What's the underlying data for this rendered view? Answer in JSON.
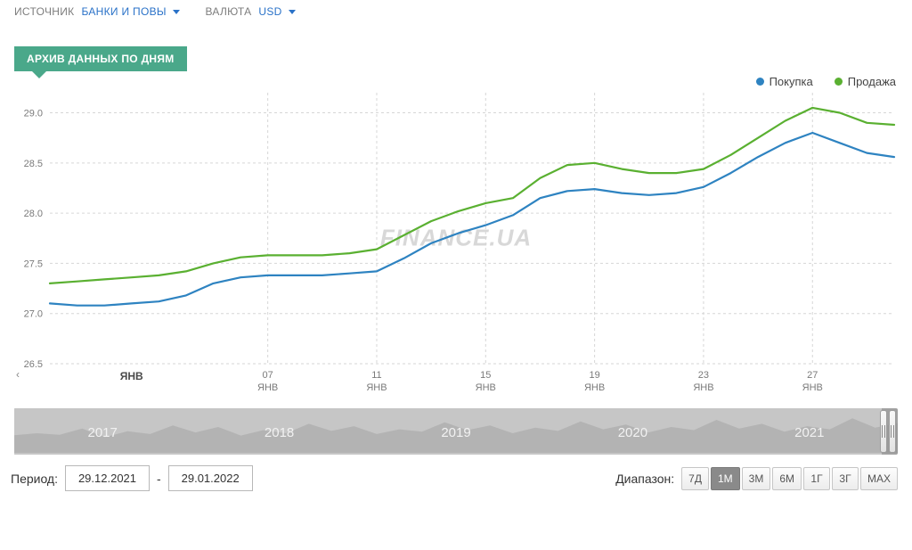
{
  "filters": {
    "source_label": "ИСТОЧНИК",
    "source_value": "БАНКИ И ПОВЫ",
    "currency_label": "ВАЛЮТА",
    "currency_value": "USD"
  },
  "tab": {
    "label": "АРХИВ ДАННЫХ ПО ДНЯМ"
  },
  "chart": {
    "type": "line",
    "background_color": "#ffffff",
    "grid_color": "#d6d6d6",
    "axis_label_color": "#7a7a7a",
    "axis_font_size": 11,
    "watermark": "FINANCE.UA",
    "y_axis": {
      "min": 26.5,
      "max": 29.2,
      "ticks": [
        26.5,
        27.0,
        27.5,
        28.0,
        28.5,
        29.0
      ]
    },
    "x_axis": {
      "month_marker": {
        "index": 3,
        "label": "ЯНВ"
      },
      "ticks": [
        {
          "index": 8,
          "top": "07",
          "bottom": "ЯНВ"
        },
        {
          "index": 12,
          "top": "11",
          "bottom": "ЯНВ"
        },
        {
          "index": 16,
          "top": "15",
          "bottom": "ЯНВ"
        },
        {
          "index": 20,
          "top": "19",
          "bottom": "ЯНВ"
        },
        {
          "index": 24,
          "top": "23",
          "bottom": "ЯНВ"
        },
        {
          "index": 28,
          "top": "27",
          "bottom": "ЯНВ"
        }
      ]
    },
    "legend": [
      {
        "name": "Покупка",
        "color": "#2e83c1"
      },
      {
        "name": "Продажа",
        "color": "#5ab031"
      }
    ],
    "series": [
      {
        "name": "Покупка",
        "color": "#2e83c1",
        "line_width": 2.2,
        "values": [
          27.1,
          27.08,
          27.08,
          27.1,
          27.12,
          27.18,
          27.3,
          27.36,
          27.38,
          27.38,
          27.38,
          27.4,
          27.42,
          27.55,
          27.7,
          27.8,
          27.88,
          27.98,
          28.15,
          28.22,
          28.24,
          28.2,
          28.18,
          28.2,
          28.26,
          28.4,
          28.56,
          28.7,
          28.8,
          28.7,
          28.6,
          28.56
        ]
      },
      {
        "name": "Продажа",
        "color": "#5ab031",
        "line_width": 2.2,
        "values": [
          27.3,
          27.32,
          27.34,
          27.36,
          27.38,
          27.42,
          27.5,
          27.56,
          27.58,
          27.58,
          27.58,
          27.6,
          27.64,
          27.78,
          27.92,
          28.02,
          28.1,
          28.15,
          28.35,
          28.48,
          28.5,
          28.44,
          28.4,
          28.4,
          28.44,
          28.58,
          28.75,
          28.92,
          29.05,
          29.0,
          28.9,
          28.88
        ]
      }
    ]
  },
  "navigator": {
    "background_color": "#a1a1a1",
    "mask_color": "#c9c9c9",
    "year_labels": [
      "2017",
      "2018",
      "2019",
      "2020",
      "2021"
    ],
    "label_color": "#f2f2f2",
    "terrain": [
      0.45,
      0.5,
      0.46,
      0.62,
      0.4,
      0.55,
      0.48,
      0.7,
      0.52,
      0.66,
      0.44,
      0.58,
      0.5,
      0.74,
      0.56,
      0.68,
      0.48,
      0.6,
      0.54,
      0.78,
      0.58,
      0.7,
      0.5,
      0.64,
      0.56,
      0.8,
      0.6,
      0.72,
      0.52,
      0.66,
      0.58,
      0.84,
      0.62,
      0.74,
      0.54,
      0.68,
      0.6,
      0.88,
      0.64,
      0.76
    ]
  },
  "period": {
    "label": "Период:",
    "from": "29.12.2021",
    "to": "29.01.2022",
    "separator": "-"
  },
  "range": {
    "label": "Диапазон:",
    "active": "1М",
    "buttons": [
      "7Д",
      "1М",
      "3М",
      "6М",
      "1Г",
      "3Г",
      "MAX"
    ]
  }
}
